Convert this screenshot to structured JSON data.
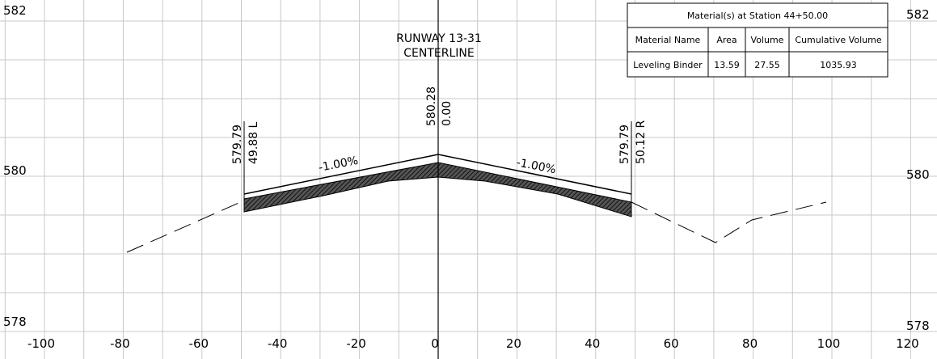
{
  "axes": {
    "x_labels": [
      "-100",
      "-80",
      "-60",
      "-40",
      "-20",
      "0",
      "20",
      "40",
      "60",
      "80",
      "100",
      "120"
    ],
    "y_labels_left": [
      "582",
      "580",
      "578"
    ],
    "y_labels_right": [
      "582",
      "580",
      "578"
    ]
  },
  "centerline": {
    "line1": "RUNWAY 13-31",
    "line2": "CENTERLINE"
  },
  "annotations": {
    "left_elev": "579.79",
    "left_offset": "49.88 L",
    "center_elev": "580.28",
    "center_offset": "0.00",
    "right_elev": "579.79",
    "right_offset": "50.12 R",
    "left_slope": "-1.00%",
    "right_slope": "-1.00%"
  },
  "table": {
    "title": "Material(s) at Station 44+50.00",
    "header": [
      "Material Name",
      "Area",
      "Volume",
      "Cumulative Volume"
    ],
    "rows": [
      [
        "Leveling Binder",
        "13.59",
        "27.55",
        "1035.93"
      ]
    ]
  }
}
